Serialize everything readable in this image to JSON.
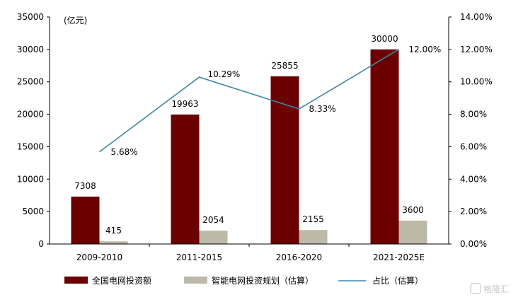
{
  "chart_data": {
    "type": "bar",
    "unit_label": "(亿元)",
    "categories": [
      "2009-2010",
      "2011-2015",
      "2016-2020",
      "2021-2025E"
    ],
    "series": [
      {
        "name": "全国电网投资额",
        "type": "bar",
        "axis": "left",
        "color": "#6b0000",
        "values": [
          7308,
          19963,
          25855,
          30000
        ]
      },
      {
        "name": "智能电网投资规划（估算）",
        "type": "bar",
        "axis": "left",
        "color": "#bdb9a8",
        "values": [
          415,
          2054,
          2155,
          3600
        ]
      },
      {
        "name": "占比（估算）",
        "type": "line",
        "axis": "right",
        "color": "#3f86a6",
        "values": [
          5.68,
          10.29,
          8.33,
          12.0
        ],
        "labels": [
          "5.68%",
          "10.29%",
          "8.33%",
          "12.00%"
        ]
      }
    ],
    "left_axis": {
      "ylim": [
        0,
        35000
      ],
      "ticks": [
        "0",
        "5000",
        "10000",
        "15000",
        "20000",
        "25000",
        "30000",
        "35000"
      ]
    },
    "right_axis": {
      "ylim": [
        0,
        14
      ],
      "ticks": [
        "0.00%",
        "2.00%",
        "4.00%",
        "6.00%",
        "8.00%",
        "10.00%",
        "12.00%",
        "14.00%"
      ]
    },
    "grid": false,
    "legend_position": "bottom"
  },
  "watermark": {
    "text": "格隆汇"
  }
}
